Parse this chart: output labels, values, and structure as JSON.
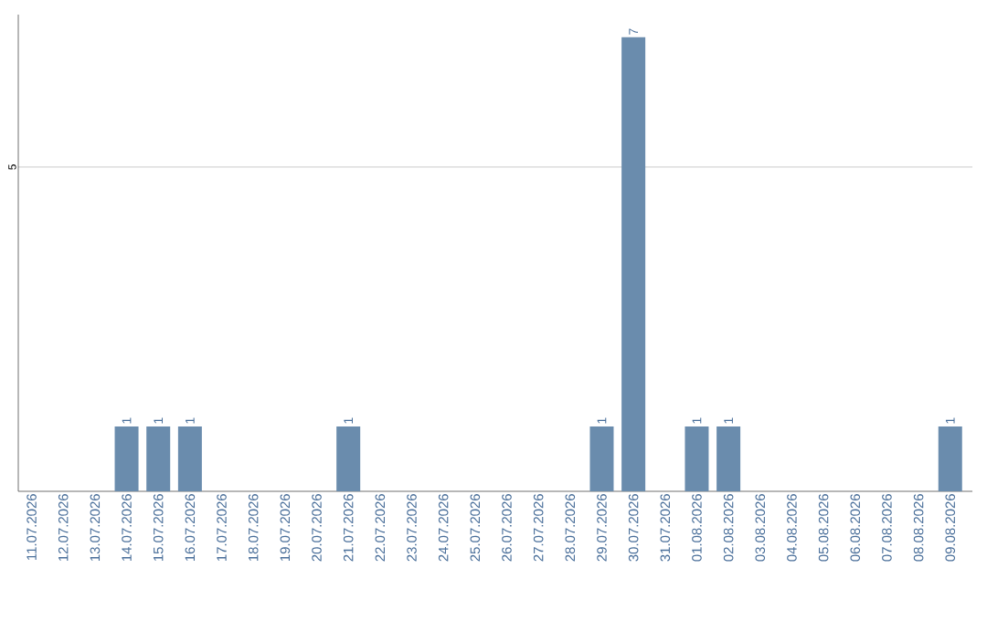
{
  "chart_data": {
    "type": "bar",
    "categories": [
      "11.07.2026",
      "12.07.2026",
      "13.07.2026",
      "14.07.2026",
      "15.07.2026",
      "16.07.2026",
      "17.07.2026",
      "18.07.2026",
      "19.07.2026",
      "20.07.2026",
      "21.07.2026",
      "22.07.2026",
      "23.07.2026",
      "24.07.2026",
      "25.07.2026",
      "26.07.2026",
      "27.07.2026",
      "28.07.2026",
      "29.07.2026",
      "30.07.2026",
      "31.07.2026",
      "01.08.2026",
      "02.08.2026",
      "03.08.2026",
      "04.08.2026",
      "05.08.2026",
      "06.08.2026",
      "07.08.2026",
      "08.08.2026",
      "09.08.2026"
    ],
    "values": [
      0,
      0,
      0,
      1,
      1,
      1,
      0,
      0,
      0,
      0,
      1,
      0,
      0,
      0,
      0,
      0,
      0,
      0,
      1,
      7,
      0,
      1,
      1,
      0,
      0,
      0,
      0,
      0,
      0,
      1
    ],
    "value_labels": [
      null,
      null,
      null,
      "1",
      "1",
      "1",
      null,
      null,
      null,
      null,
      "1",
      null,
      null,
      null,
      null,
      null,
      null,
      null,
      "1",
      "7",
      null,
      "1",
      "1",
      null,
      null,
      null,
      null,
      null,
      null,
      "1"
    ],
    "color": "#6a8cad",
    "ylim": [
      0,
      7.35
    ],
    "yticks": [
      5
    ],
    "grid": "y"
  }
}
